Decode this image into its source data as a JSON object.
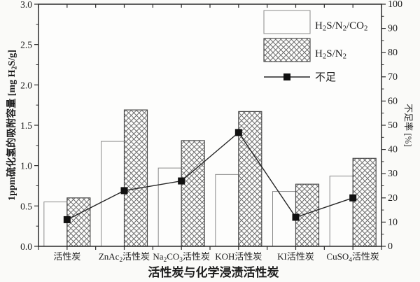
{
  "chart_data": {
    "type": "bar",
    "subtype": "grouped-bars-with-line-overlay",
    "title": "",
    "categories": [
      "活性炭",
      "ZnAc_2活性炭",
      "Na_2CO_3活性炭",
      "KOH活性炭",
      "KI活性炭",
      "CuSO_4活性炭"
    ],
    "series": [
      {
        "name": "H_2S/N_2/CO_2",
        "kind": "bar",
        "style": "open",
        "axis": "left",
        "values": [
          0.55,
          1.3,
          0.97,
          0.89,
          0.68,
          0.87
        ]
      },
      {
        "name": "H_2S/N_2",
        "kind": "bar",
        "style": "crosshatch",
        "axis": "left",
        "values": [
          0.6,
          1.69,
          1.31,
          1.67,
          0.77,
          1.09
        ]
      },
      {
        "name": "不足",
        "kind": "line",
        "marker": "filled-square",
        "axis": "right",
        "values": [
          11,
          23,
          27,
          47,
          12,
          20
        ]
      }
    ],
    "xlabel": "活性炭与化学浸渍活性炭",
    "ylabel_left": "1ppm硫化氢的吸附容量 [mg H_2S/g]",
    "ylabel_right": "不足率 [%]",
    "ylim_left": [
      0,
      3.0
    ],
    "yticks_left": [
      "0.0",
      "0.5",
      "1.0",
      "1.5",
      "2.0",
      "2.5",
      "3.0"
    ],
    "yminor_step_left": 0.25,
    "ylim_right": [
      0,
      100
    ],
    "yticks_right": [
      "0",
      "10",
      "20",
      "30",
      "40",
      "50",
      "60",
      "70",
      "80",
      "90",
      "100"
    ],
    "yminor_step_right": 5,
    "grid": false,
    "legend_position": "top-right-inside"
  },
  "colors": {
    "background": "#fafaf8",
    "axis_stroke": "#2b2b2b",
    "open_bar_stroke": "#8a8a8a",
    "open_bar_fill": "#fdfdfc",
    "hatch_bar_stroke": "#4a4a4a",
    "hatch_line": "#6e6e6e",
    "line_stroke": "#262626",
    "marker_fill": "#111111",
    "text": "#1c1c1c"
  }
}
